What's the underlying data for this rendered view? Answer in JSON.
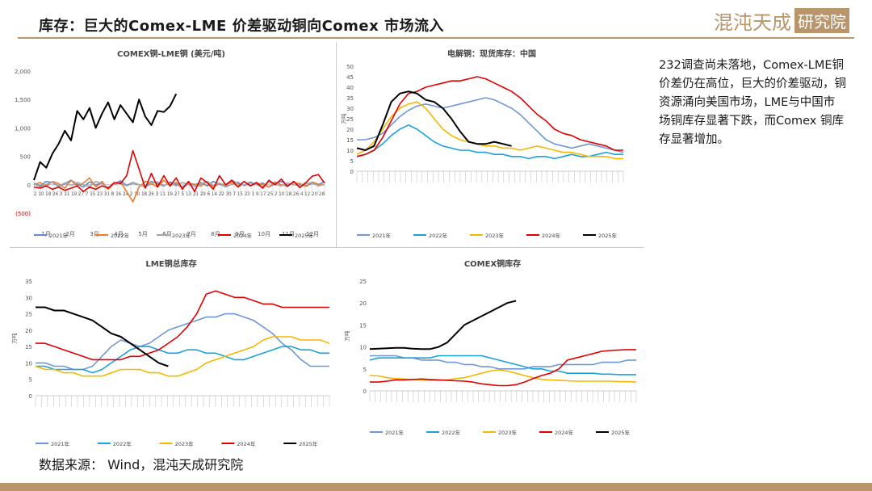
{
  "header": {
    "title": "库存：巨大的Comex-LME 价差驱动铜向Comex 市场流入",
    "logo_main": "混沌天成",
    "logo_box": "研究院"
  },
  "right_text": "232调查尚未落地，Comex-LME铜价差仍在高位，巨大的价差驱动，铜资源涌向美国市场，LME与中国市场铜库存显著下跌，而Comex 铜库存显著增加。",
  "source": "数据来源： Wind，混沌天成研究院",
  "colors": {
    "accent": "#b8956a",
    "y2021": "#5b8bd0",
    "y2022": "#ed7d31",
    "y2023": "#a5a5a5",
    "y2024": "#e00000",
    "y2025": "#000000",
    "b2021": "#6f97d8",
    "b2022": "#1aa3d8",
    "b2023": "#f5b800"
  },
  "chart_data": [
    {
      "type": "line",
      "title": "COMEX铜-LME铜 (美元/吨)",
      "xlabel": "",
      "ylabel": "",
      "ylim": [
        -500,
        2000
      ],
      "y_ticks": [
        "2,000",
        "1,500",
        "1,000",
        "500",
        "0",
        "(500)"
      ],
      "x_ticks": "2 10 18 26 3 11 19 27 7 15 23 31 8 16 24 2 10 18 26 3 11 19 27 5 13 21 29 6 14 22 30 7 15 23 1 9 17 25 2 10 18 26 4 12 20 28",
      "months": [
        "1月",
        "2月",
        "3月",
        "4月",
        "5月",
        "6月",
        "7月",
        "8月",
        "9月",
        "10月",
        "11月",
        "12月"
      ],
      "legend": [
        "2021年",
        "2022年",
        "2023年",
        "2024年",
        "2025年"
      ],
      "series": [
        {
          "name": "2021年",
          "values": [
            30,
            -20,
            60,
            40,
            -30,
            20,
            80,
            10,
            -40,
            50,
            0,
            30,
            -60,
            20,
            70,
            -10,
            40,
            0,
            -30,
            60,
            20,
            -20,
            50,
            10,
            -40,
            30,
            0,
            40,
            -20,
            60,
            10,
            -30,
            80,
            20,
            -10,
            50,
            0,
            30,
            -40,
            20,
            60,
            -10,
            40,
            10,
            -20,
            30,
            0,
            60
          ]
        },
        {
          "name": "2022年",
          "values": [
            0,
            40,
            -30,
            60,
            20,
            -60,
            80,
            -20,
            30,
            120,
            -40,
            60,
            -80,
            20,
            50,
            -120,
            -300,
            -40,
            60,
            20,
            -40,
            80,
            -20,
            40,
            -60,
            30,
            10,
            -20,
            60,
            -40,
            20,
            0,
            40,
            -30,
            60,
            -20,
            30,
            10,
            -40,
            50,
            0,
            -20,
            40,
            20,
            -30,
            50,
            10,
            0
          ]
        },
        {
          "name": "2023年",
          "values": [
            20,
            -40,
            10,
            50,
            -20,
            30,
            -10,
            40,
            0,
            -30,
            60,
            20,
            -50,
            10,
            40,
            -20,
            30,
            0,
            -40,
            20,
            50,
            -10,
            30,
            -20,
            40,
            0,
            -30,
            20,
            60,
            -10,
            30,
            -40,
            10,
            50,
            -20,
            30,
            0,
            -30,
            40,
            10,
            -20,
            30,
            0,
            -10,
            20,
            40,
            -20,
            10
          ]
        },
        {
          "name": "2024年",
          "values": [
            -40,
            -60,
            -20,
            -80,
            -40,
            -100,
            -60,
            -20,
            -120,
            -40,
            -80,
            -20,
            -60,
            40,
            20,
            160,
            600,
            280,
            -60,
            200,
            -40,
            160,
            -20,
            120,
            -80,
            60,
            -120,
            120,
            40,
            -80,
            160,
            0,
            80,
            -40,
            60,
            -20,
            40,
            -60,
            80,
            0,
            100,
            -30,
            60,
            -50,
            40,
            150,
            180,
            30
          ]
        },
        {
          "name": "2025年",
          "values": [
            80,
            400,
            300,
            550,
            720,
            950,
            780,
            1300,
            1150,
            1350,
            1000,
            1250,
            1450,
            1150,
            1400,
            1250,
            1100,
            1500,
            1200,
            1050,
            1300,
            1280,
            1380,
            1600
          ]
        }
      ]
    },
    {
      "type": "line",
      "title": "电解铜：现货库存：中国",
      "xlabel": "",
      "ylabel": "万吨",
      "ylim": [
        0,
        50
      ],
      "y_ticks": [
        "50",
        "45",
        "40",
        "35",
        "30",
        "25",
        "20",
        "15",
        "10",
        "5",
        "0"
      ],
      "legend": [
        "2021年",
        "2022年",
        "2023年",
        "2024年",
        "2025年"
      ],
      "series": [
        {
          "name": "2021年",
          "values": [
            15,
            15,
            16,
            18,
            22,
            26,
            29,
            31,
            32,
            31,
            30,
            31,
            32,
            33,
            34,
            35,
            34,
            32,
            30,
            27,
            23,
            19,
            15,
            13,
            12,
            11,
            12,
            13,
            12,
            11,
            10,
            9
          ]
        },
        {
          "name": "2022年",
          "values": [
            7,
            8,
            10,
            13,
            17,
            20,
            22,
            20,
            17,
            14,
            12,
            11,
            10,
            10,
            9,
            9,
            8,
            8,
            7,
            7,
            6,
            7,
            7,
            6,
            7,
            8,
            7,
            7,
            8,
            9,
            8,
            8
          ]
        },
        {
          "name": "2023年",
          "values": [
            8,
            10,
            14,
            20,
            26,
            30,
            32,
            33,
            30,
            25,
            20,
            17,
            15,
            14,
            13,
            12,
            12,
            11,
            11,
            10,
            11,
            12,
            11,
            10,
            9,
            9,
            8,
            7,
            7,
            7,
            6,
            6
          ]
        },
        {
          "name": "2024年",
          "values": [
            7,
            8,
            10,
            16,
            24,
            32,
            37,
            38,
            40,
            41,
            42,
            43,
            43,
            44,
            45,
            44,
            42,
            40,
            38,
            35,
            31,
            27,
            24,
            20,
            18,
            17,
            15,
            14,
            13,
            12,
            10,
            10
          ]
        },
        {
          "name": "2025年",
          "values": [
            11,
            10,
            12,
            22,
            33,
            37,
            38,
            37,
            34,
            33,
            30,
            25,
            19,
            14,
            13,
            13,
            14,
            13,
            12
          ]
        }
      ]
    },
    {
      "type": "line",
      "title": "LME铜总库存",
      "xlabel": "",
      "ylabel": "万吨",
      "ylim": [
        0,
        35
      ],
      "y_ticks": [
        "35",
        "30",
        "25",
        "20",
        "15",
        "10",
        "5",
        "0"
      ],
      "legend": [
        "2021年",
        "2022年",
        "2023年",
        "2024年",
        "2025年"
      ],
      "series": [
        {
          "name": "2021年",
          "values": [
            10,
            10,
            9,
            9,
            8,
            8,
            9,
            12,
            15,
            17,
            16,
            15,
            16,
            18,
            20,
            21,
            22,
            23,
            24,
            24,
            25,
            25,
            24,
            23,
            21,
            19,
            16,
            14,
            11,
            9,
            9,
            9
          ]
        },
        {
          "name": "2022年",
          "values": [
            9,
            9,
            8,
            8,
            8,
            8,
            7,
            8,
            10,
            12,
            14,
            15,
            15,
            14,
            13,
            13,
            14,
            14,
            13,
            13,
            12,
            11,
            11,
            12,
            13,
            14,
            15,
            15,
            14,
            14,
            13,
            13
          ]
        },
        {
          "name": "2023年",
          "values": [
            9,
            8,
            8,
            7,
            7,
            6,
            6,
            6,
            7,
            8,
            8,
            8,
            7,
            7,
            6,
            6,
            7,
            8,
            10,
            11,
            12,
            13,
            14,
            15,
            17,
            18,
            18,
            18,
            17,
            17,
            17,
            16
          ]
        },
        {
          "name": "2024年",
          "values": [
            16,
            16,
            15,
            14,
            13,
            12,
            11,
            11,
            11,
            11,
            12,
            12,
            13,
            14,
            16,
            18,
            21,
            25,
            31,
            32,
            31,
            30,
            30,
            29,
            28,
            28,
            27,
            27,
            27,
            27,
            27,
            27
          ]
        },
        {
          "name": "2025年",
          "values": [
            27,
            27,
            26,
            26,
            25,
            24,
            23,
            21,
            19,
            18,
            16,
            14,
            12,
            10,
            9
          ]
        }
      ]
    },
    {
      "type": "line",
      "title": "COMEX铜库存",
      "xlabel": "",
      "ylabel": "万吨",
      "ylim": [
        0,
        25
      ],
      "y_ticks": [
        "25",
        "20",
        "15",
        "10",
        "5",
        "0"
      ],
      "legend": [
        "2021年",
        "2022年",
        "2023年",
        "2024年",
        "2025年"
      ],
      "series": [
        {
          "name": "2021年",
          "values": [
            8,
            8,
            8,
            8,
            7.5,
            7.5,
            7,
            7,
            7,
            6.5,
            6.5,
            6,
            6,
            5.5,
            5.5,
            5,
            5,
            5,
            5,
            5.5,
            5.5,
            5.5,
            6,
            6,
            6,
            6,
            6,
            6.5,
            6.5,
            6.5,
            7,
            7
          ]
        },
        {
          "name": "2022年",
          "values": [
            7,
            7.5,
            7.5,
            7.5,
            7.5,
            7.5,
            7.5,
            7.5,
            8,
            8,
            8,
            8,
            8,
            8,
            7.5,
            7,
            6.5,
            6,
            5.5,
            5,
            5,
            4.5,
            4.5,
            4,
            4,
            4,
            4,
            3.8,
            3.8,
            3.7,
            3.7,
            3.7
          ]
        },
        {
          "name": "2023年",
          "values": [
            3.5,
            3.4,
            3,
            2.8,
            2.7,
            2.6,
            2.5,
            2.4,
            2.4,
            2.5,
            2.8,
            3,
            3.5,
            4,
            4.5,
            4.8,
            4.5,
            4,
            3.5,
            3,
            2.6,
            2.5,
            2.4,
            2.3,
            2.2,
            2.2,
            2.2,
            2.2,
            2.2,
            2.1,
            2.1,
            2
          ]
        },
        {
          "name": "2024年",
          "values": [
            2,
            2,
            2.2,
            2.5,
            2.5,
            2.6,
            2.7,
            2.6,
            2.5,
            2.4,
            2.3,
            2.2,
            2,
            1.6,
            1.4,
            1.2,
            1.2,
            1.4,
            2,
            2.8,
            3.5,
            4,
            5,
            7,
            7.5,
            8,
            8.5,
            9,
            9.2,
            9.3,
            9.4,
            9.4
          ]
        },
        {
          "name": "2025年",
          "values": [
            9.5,
            9.6,
            9.7,
            9.8,
            9.8,
            9.6,
            9.5,
            9.5,
            10,
            11,
            13,
            15,
            16,
            17,
            18,
            19,
            20,
            20.5
          ]
        }
      ]
    }
  ]
}
